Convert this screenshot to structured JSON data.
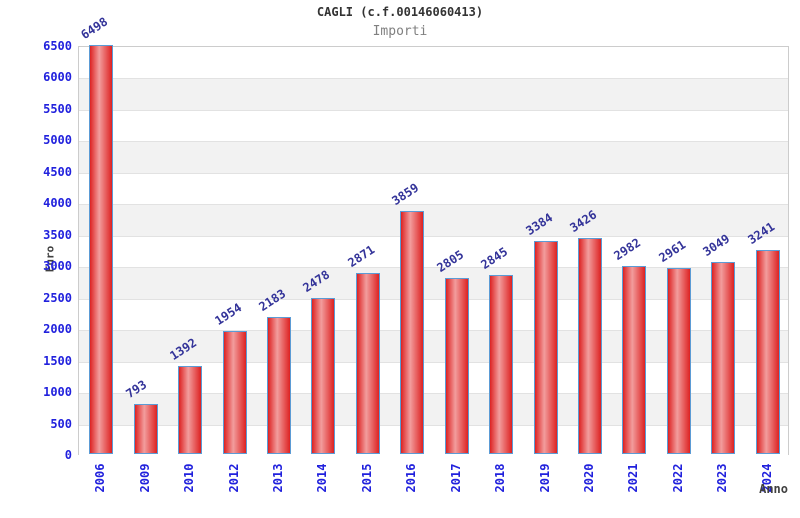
{
  "chart": {
    "title": "CAGLI (c.f.00146060413)",
    "subtitle": "Importi",
    "y_axis_label": "Euro",
    "x_axis_label": "Anno"
  },
  "chart_data": {
    "type": "bar",
    "title": "CAGLI (c.f.00146060413)",
    "subtitle": "Importi",
    "xlabel": "Anno",
    "ylabel": "Euro",
    "categories": [
      "2006",
      "2009",
      "2010",
      "2012",
      "2013",
      "2014",
      "2015",
      "2016",
      "2017",
      "2018",
      "2019",
      "2020",
      "2021",
      "2022",
      "2023",
      "2024"
    ],
    "values": [
      6498,
      793,
      1392,
      1954,
      2183,
      2478,
      2871,
      3859,
      2805,
      2845,
      3384,
      3426,
      2982,
      2961,
      3049,
      3241
    ],
    "ylim": [
      0,
      6500
    ],
    "ytick_interval": 500,
    "grid": "alternating-horizontal-bands",
    "legend": false,
    "value_labels_rotated": true,
    "x_labels_rotated_90": true,
    "colors": {
      "title": "#333333",
      "subtitle": "#808080",
      "tick_label": "#2121dd",
      "value_label": "#333399",
      "axis_title": "#404040",
      "band_alt": "#f2f2f2",
      "grid_line": "#e2e2e2",
      "plot_border": "#cccccc",
      "bar_border": "#5b9bd5",
      "bar_gradient_edge": "#dd2222",
      "bar_gradient_mid": "#f29d9d"
    }
  }
}
